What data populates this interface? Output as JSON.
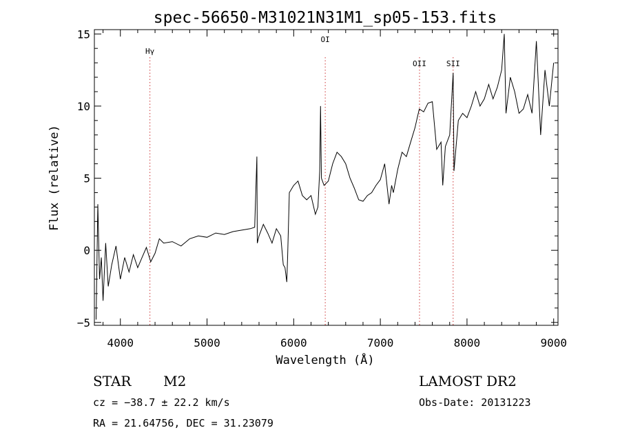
{
  "chart_data": {
    "type": "line",
    "title": "spec-56650-M31021N31M1_sp05-153.fits",
    "xlabel": "Wavelength (Å)",
    "ylabel": "Flux (relative)",
    "xlim": [
      3700,
      9050
    ],
    "ylim": [
      -5.2,
      15.3
    ],
    "xticks": [
      4000,
      5000,
      6000,
      7000,
      8000,
      9000
    ],
    "yticks": [
      -5,
      0,
      5,
      10,
      15
    ],
    "grid": false,
    "line_color": "#000000",
    "marker_color": "#cc3333",
    "spectral_lines": [
      {
        "name": "Hγ",
        "x": 4341
      },
      {
        "name": "OI",
        "x": 6364
      },
      {
        "name": "OII",
        "x": 7452
      },
      {
        "name": "SII",
        "x": 7840
      }
    ],
    "series": [
      {
        "x": [
          3720,
          3740,
          3760,
          3780,
          3800,
          3830,
          3860,
          3900,
          3950,
          4000,
          4050,
          4100,
          4150,
          4200,
          4250,
          4300,
          4350,
          4400,
          4450,
          4500,
          4600,
          4700,
          4800,
          4900,
          5000,
          5100,
          5200,
          5300,
          5400,
          5500,
          5550,
          5575,
          5580,
          5600,
          5650,
          5700,
          5750,
          5800,
          5850,
          5880,
          5900,
          5920,
          5930,
          5950,
          6000,
          6050,
          6100,
          6150,
          6200,
          6250,
          6280,
          6300,
          6310,
          6320,
          6350,
          6400,
          6450,
          6500,
          6550,
          6600,
          6650,
          6700,
          6750,
          6800,
          6850,
          6900,
          6950,
          7000,
          7050,
          7100,
          7130,
          7150,
          7200,
          7250,
          7300,
          7350,
          7400,
          7430,
          7450,
          7500,
          7550,
          7600,
          7650,
          7700,
          7720,
          7750,
          7800,
          7840,
          7850,
          7900,
          7950,
          8000,
          8050,
          8100,
          8150,
          8200,
          8250,
          8300,
          8350,
          8400,
          8430,
          8450,
          8500,
          8550,
          8600,
          8650,
          8700,
          8750,
          8800,
          8850,
          8900,
          8950,
          9000
        ],
        "y": [
          -4.8,
          3.2,
          -2.0,
          -0.5,
          -3.5,
          0.5,
          -2.5,
          -1.0,
          0.3,
          -2.0,
          -0.5,
          -1.5,
          -0.3,
          -1.2,
          -0.5,
          0.2,
          -0.8,
          -0.2,
          0.8,
          0.5,
          0.6,
          0.3,
          0.8,
          1.0,
          0.9,
          1.2,
          1.1,
          1.3,
          1.4,
          1.5,
          1.6,
          6.5,
          0.5,
          1.0,
          1.8,
          1.2,
          0.5,
          1.5,
          1.0,
          -1.0,
          -1.2,
          -2.2,
          -0.5,
          4.0,
          4.5,
          4.8,
          3.8,
          3.5,
          3.8,
          2.5,
          3.0,
          5.5,
          10.0,
          5.0,
          4.5,
          4.8,
          6.0,
          6.8,
          6.5,
          6.0,
          5.0,
          4.3,
          3.5,
          3.4,
          3.8,
          4.0,
          4.5,
          4.9,
          6.0,
          3.2,
          4.5,
          4.0,
          5.6,
          6.8,
          6.5,
          7.5,
          8.5,
          9.3,
          9.8,
          9.6,
          10.2,
          10.3,
          7.0,
          7.5,
          4.5,
          7.2,
          8.0,
          12.3,
          5.5,
          9.0,
          9.5,
          9.2,
          10.0,
          11.0,
          10.0,
          10.5,
          11.5,
          10.5,
          11.3,
          12.5,
          15.0,
          9.5,
          12.0,
          11.0,
          9.5,
          9.8,
          10.8,
          9.5,
          14.5,
          8.0,
          12.5,
          10.0,
          13.0
        ]
      }
    ]
  },
  "info": {
    "class": "STAR",
    "subclass": "M2",
    "survey": "LAMOST DR2",
    "cz": "cz = −38.7 ± 22.2 km/s",
    "obs_date": "Obs-Date: 20131223",
    "radec": "RA =  21.64756, DEC =  31.23079"
  }
}
